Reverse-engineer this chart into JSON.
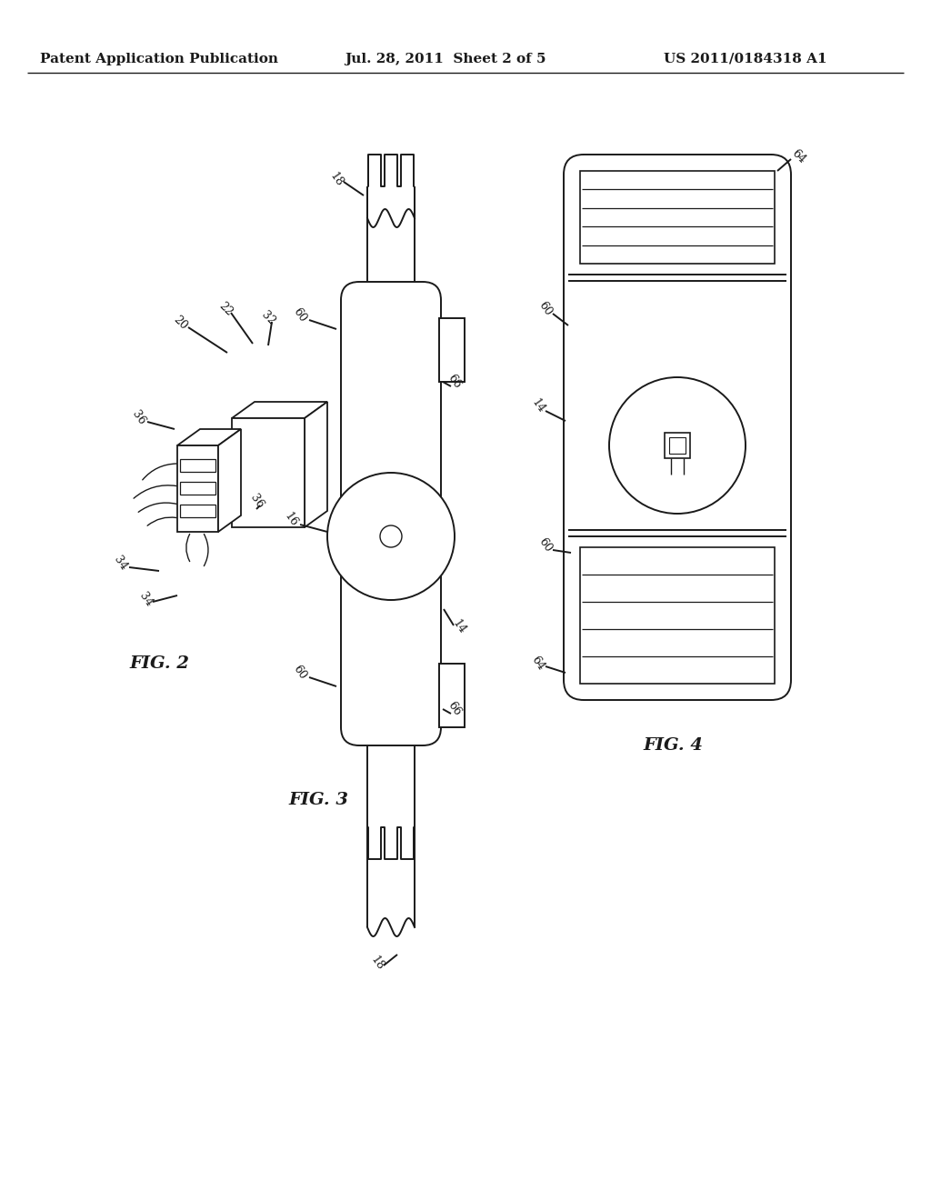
{
  "bg_color": "#ffffff",
  "line_color": "#1a1a1a",
  "header_left": "Patent Application Publication",
  "header_center": "Jul. 28, 2011  Sheet 2 of 5",
  "header_right": "US 2011/0184318 A1",
  "fig2_label": "FIG. 2",
  "fig3_label": "FIG. 3",
  "fig4_label": "FIG. 4"
}
